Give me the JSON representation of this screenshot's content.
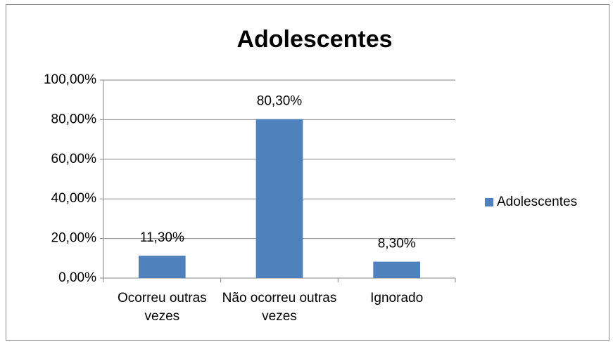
{
  "chart_data": {
    "type": "bar",
    "title": "Adolescentes",
    "categories": [
      "Ocorreu outras vezes",
      "Não ocorreu outras vezes",
      "Ignorado"
    ],
    "series": [
      {
        "name": "Adolescentes",
        "color": "#4f81bd",
        "values": [
          11.3,
          80.3,
          8.3
        ],
        "value_labels": [
          "11,30%",
          "80,30%",
          "8,30%"
        ]
      }
    ],
    "ylim": [
      0,
      100
    ],
    "yticks": [
      {
        "value": 0,
        "label": "0,00%"
      },
      {
        "value": 20,
        "label": "20,00%"
      },
      {
        "value": 40,
        "label": "40,00%"
      },
      {
        "value": 60,
        "label": "60,00%"
      },
      {
        "value": 80,
        "label": "80,00%"
      },
      {
        "value": 100,
        "label": "100,00%"
      }
    ],
    "grid": true,
    "legend": "right"
  }
}
